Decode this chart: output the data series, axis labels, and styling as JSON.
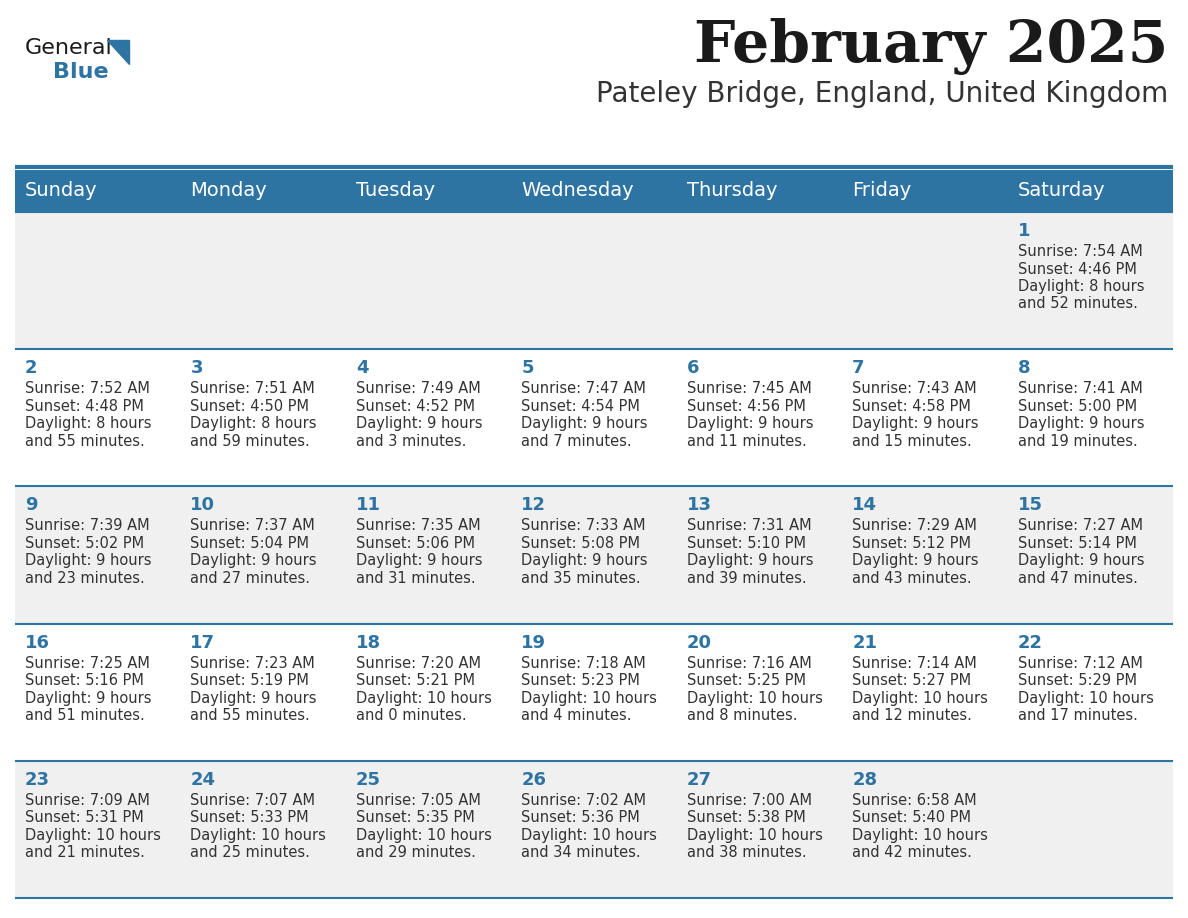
{
  "title": "February 2025",
  "subtitle": "Pateley Bridge, England, United Kingdom",
  "header_bg": "#2e74a3",
  "header_text_color": "#ffffff",
  "cell_bg_even": "#f0f0f0",
  "cell_bg_odd": "#ffffff",
  "day_number_color": "#2e74a3",
  "info_text_color": "#333333",
  "divider_color": "#2e74a3",
  "days_of_week": [
    "Sunday",
    "Monday",
    "Tuesday",
    "Wednesday",
    "Thursday",
    "Friday",
    "Saturday"
  ],
  "weeks": [
    [
      {
        "day": null,
        "sunrise": null,
        "sunset": null,
        "daylight_line1": null,
        "daylight_line2": null
      },
      {
        "day": null,
        "sunrise": null,
        "sunset": null,
        "daylight_line1": null,
        "daylight_line2": null
      },
      {
        "day": null,
        "sunrise": null,
        "sunset": null,
        "daylight_line1": null,
        "daylight_line2": null
      },
      {
        "day": null,
        "sunrise": null,
        "sunset": null,
        "daylight_line1": null,
        "daylight_line2": null
      },
      {
        "day": null,
        "sunrise": null,
        "sunset": null,
        "daylight_line1": null,
        "daylight_line2": null
      },
      {
        "day": null,
        "sunrise": null,
        "sunset": null,
        "daylight_line1": null,
        "daylight_line2": null
      },
      {
        "day": 1,
        "sunrise": "7:54 AM",
        "sunset": "4:46 PM",
        "daylight_line1": "8 hours",
        "daylight_line2": "and 52 minutes."
      }
    ],
    [
      {
        "day": 2,
        "sunrise": "7:52 AM",
        "sunset": "4:48 PM",
        "daylight_line1": "8 hours",
        "daylight_line2": "and 55 minutes."
      },
      {
        "day": 3,
        "sunrise": "7:51 AM",
        "sunset": "4:50 PM",
        "daylight_line1": "8 hours",
        "daylight_line2": "and 59 minutes."
      },
      {
        "day": 4,
        "sunrise": "7:49 AM",
        "sunset": "4:52 PM",
        "daylight_line1": "9 hours",
        "daylight_line2": "and 3 minutes."
      },
      {
        "day": 5,
        "sunrise": "7:47 AM",
        "sunset": "4:54 PM",
        "daylight_line1": "9 hours",
        "daylight_line2": "and 7 minutes."
      },
      {
        "day": 6,
        "sunrise": "7:45 AM",
        "sunset": "4:56 PM",
        "daylight_line1": "9 hours",
        "daylight_line2": "and 11 minutes."
      },
      {
        "day": 7,
        "sunrise": "7:43 AM",
        "sunset": "4:58 PM",
        "daylight_line1": "9 hours",
        "daylight_line2": "and 15 minutes."
      },
      {
        "day": 8,
        "sunrise": "7:41 AM",
        "sunset": "5:00 PM",
        "daylight_line1": "9 hours",
        "daylight_line2": "and 19 minutes."
      }
    ],
    [
      {
        "day": 9,
        "sunrise": "7:39 AM",
        "sunset": "5:02 PM",
        "daylight_line1": "9 hours",
        "daylight_line2": "and 23 minutes."
      },
      {
        "day": 10,
        "sunrise": "7:37 AM",
        "sunset": "5:04 PM",
        "daylight_line1": "9 hours",
        "daylight_line2": "and 27 minutes."
      },
      {
        "day": 11,
        "sunrise": "7:35 AM",
        "sunset": "5:06 PM",
        "daylight_line1": "9 hours",
        "daylight_line2": "and 31 minutes."
      },
      {
        "day": 12,
        "sunrise": "7:33 AM",
        "sunset": "5:08 PM",
        "daylight_line1": "9 hours",
        "daylight_line2": "and 35 minutes."
      },
      {
        "day": 13,
        "sunrise": "7:31 AM",
        "sunset": "5:10 PM",
        "daylight_line1": "9 hours",
        "daylight_line2": "and 39 minutes."
      },
      {
        "day": 14,
        "sunrise": "7:29 AM",
        "sunset": "5:12 PM",
        "daylight_line1": "9 hours",
        "daylight_line2": "and 43 minutes."
      },
      {
        "day": 15,
        "sunrise": "7:27 AM",
        "sunset": "5:14 PM",
        "daylight_line1": "9 hours",
        "daylight_line2": "and 47 minutes."
      }
    ],
    [
      {
        "day": 16,
        "sunrise": "7:25 AM",
        "sunset": "5:16 PM",
        "daylight_line1": "9 hours",
        "daylight_line2": "and 51 minutes."
      },
      {
        "day": 17,
        "sunrise": "7:23 AM",
        "sunset": "5:19 PM",
        "daylight_line1": "9 hours",
        "daylight_line2": "and 55 minutes."
      },
      {
        "day": 18,
        "sunrise": "7:20 AM",
        "sunset": "5:21 PM",
        "daylight_line1": "10 hours",
        "daylight_line2": "and 0 minutes."
      },
      {
        "day": 19,
        "sunrise": "7:18 AM",
        "sunset": "5:23 PM",
        "daylight_line1": "10 hours",
        "daylight_line2": "and 4 minutes."
      },
      {
        "day": 20,
        "sunrise": "7:16 AM",
        "sunset": "5:25 PM",
        "daylight_line1": "10 hours",
        "daylight_line2": "and 8 minutes."
      },
      {
        "day": 21,
        "sunrise": "7:14 AM",
        "sunset": "5:27 PM",
        "daylight_line1": "10 hours",
        "daylight_line2": "and 12 minutes."
      },
      {
        "day": 22,
        "sunrise": "7:12 AM",
        "sunset": "5:29 PM",
        "daylight_line1": "10 hours",
        "daylight_line2": "and 17 minutes."
      }
    ],
    [
      {
        "day": 23,
        "sunrise": "7:09 AM",
        "sunset": "5:31 PM",
        "daylight_line1": "10 hours",
        "daylight_line2": "and 21 minutes."
      },
      {
        "day": 24,
        "sunrise": "7:07 AM",
        "sunset": "5:33 PM",
        "daylight_line1": "10 hours",
        "daylight_line2": "and 25 minutes."
      },
      {
        "day": 25,
        "sunrise": "7:05 AM",
        "sunset": "5:35 PM",
        "daylight_line1": "10 hours",
        "daylight_line2": "and 29 minutes."
      },
      {
        "day": 26,
        "sunrise": "7:02 AM",
        "sunset": "5:36 PM",
        "daylight_line1": "10 hours",
        "daylight_line2": "and 34 minutes."
      },
      {
        "day": 27,
        "sunrise": "7:00 AM",
        "sunset": "5:38 PM",
        "daylight_line1": "10 hours",
        "daylight_line2": "and 38 minutes."
      },
      {
        "day": 28,
        "sunrise": "6:58 AM",
        "sunset": "5:40 PM",
        "daylight_line1": "10 hours",
        "daylight_line2": "and 42 minutes."
      },
      {
        "day": null,
        "sunrise": null,
        "sunset": null,
        "daylight_line1": null,
        "daylight_line2": null
      }
    ]
  ],
  "title_fontsize": 42,
  "subtitle_fontsize": 20,
  "header_fontsize": 14,
  "day_num_fontsize": 13,
  "info_fontsize": 10.5
}
